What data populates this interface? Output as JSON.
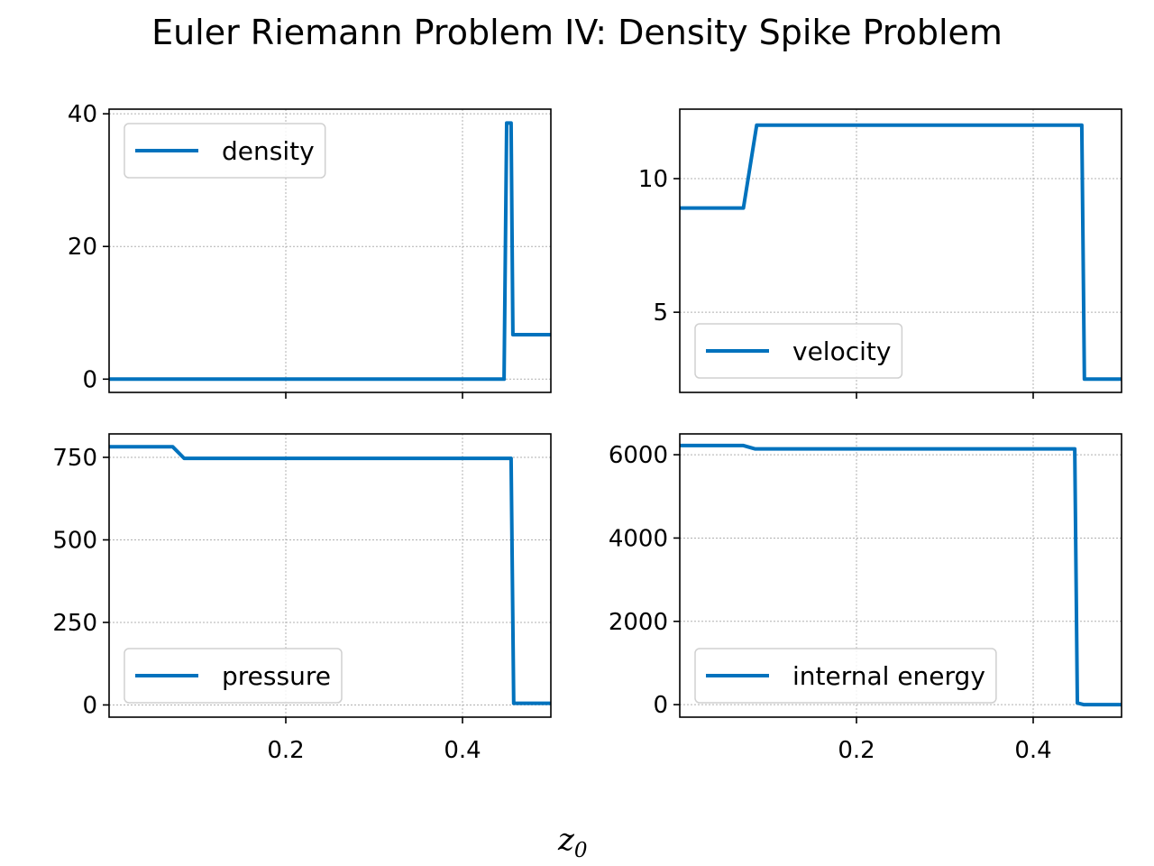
{
  "figure": {
    "title": "Euler Riemann Problem IV: Density Spike Problem",
    "xlabel_main": "z",
    "xlabel_sub": "0",
    "line_color": "#0072bd"
  },
  "chart_data": [
    {
      "type": "line",
      "xlim": [
        0.0,
        0.5
      ],
      "ylim": [
        -2.0,
        40.7
      ],
      "grid": true,
      "legend_placement": "upper left",
      "xticks": [
        0.2,
        0.4
      ],
      "xtick_labels": [],
      "yticks": [
        0,
        20,
        40
      ],
      "ytick_labels": [
        "0",
        "20",
        "40"
      ],
      "series": [
        {
          "name": "density",
          "x": [
            0.0,
            0.447,
            0.45,
            0.455,
            0.457,
            0.5
          ],
          "y": [
            0.0,
            0.0,
            38.6,
            38.6,
            6.7,
            6.7
          ]
        }
      ]
    },
    {
      "type": "line",
      "xlim": [
        0.0,
        0.5
      ],
      "ylim": [
        2.0,
        12.6
      ],
      "grid": true,
      "legend_placement": "lower left",
      "xticks": [
        0.2,
        0.4
      ],
      "xtick_labels": [],
      "yticks": [
        5,
        10
      ],
      "ytick_labels": [
        "5",
        "10"
      ],
      "series": [
        {
          "name": "velocity",
          "x": [
            0.0,
            0.072,
            0.087,
            0.455,
            0.458,
            0.5
          ],
          "y": [
            8.9,
            8.9,
            12.0,
            12.0,
            2.5,
            2.5
          ]
        }
      ]
    },
    {
      "type": "line",
      "xlim": [
        0.0,
        0.5
      ],
      "ylim": [
        -37,
        821
      ],
      "grid": true,
      "legend_placement": "lower left",
      "xticks": [
        0.2,
        0.4
      ],
      "xtick_labels": [
        "0.2",
        "0.4"
      ],
      "yticks": [
        0,
        250,
        500,
        750
      ],
      "ytick_labels": [
        "0",
        "250",
        "500",
        "750"
      ],
      "series": [
        {
          "name": "pressure",
          "x": [
            0.0,
            0.072,
            0.085,
            0.455,
            0.458,
            0.5
          ],
          "y": [
            782,
            782,
            747,
            747,
            5,
            5
          ]
        }
      ]
    },
    {
      "type": "line",
      "xlim": [
        0.0,
        0.5
      ],
      "ylim": [
        -300,
        6500
      ],
      "grid": true,
      "legend_placement": "lower left",
      "xticks": [
        0.2,
        0.4
      ],
      "xtick_labels": [
        "0.2",
        "0.4"
      ],
      "yticks": [
        0,
        2000,
        4000,
        6000
      ],
      "ytick_labels": [
        "0",
        "2000",
        "4000",
        "6000"
      ],
      "series": [
        {
          "name": "internal energy",
          "x": [
            0.0,
            0.072,
            0.085,
            0.447,
            0.45,
            0.457,
            0.5
          ],
          "y": [
            6220,
            6220,
            6140,
            6140,
            40,
            0,
            0
          ]
        }
      ]
    }
  ]
}
